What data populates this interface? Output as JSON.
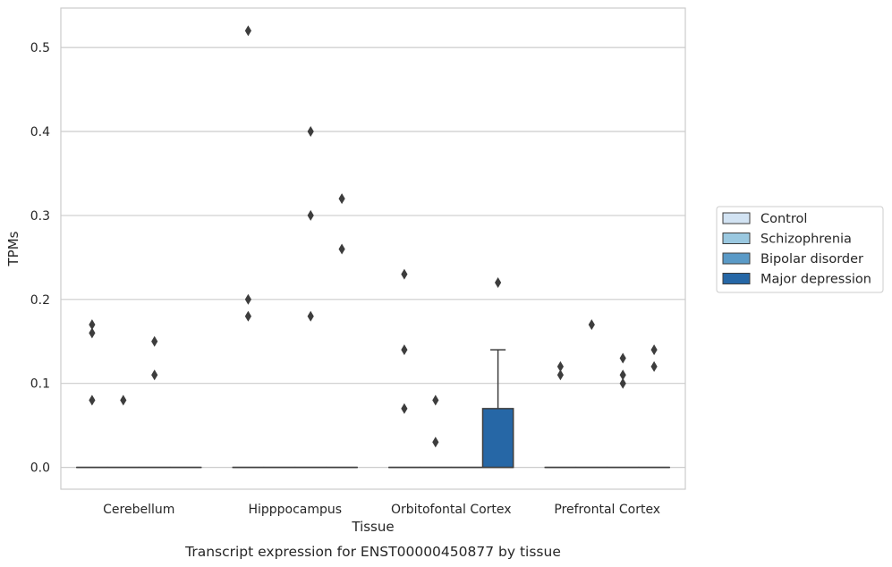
{
  "caption": "Transcript expression for ENST00000450877 by tissue",
  "chart_data": {
    "type": "box",
    "xlabel": "Tissue",
    "ylabel": "TPMs",
    "ylim": [
      -0.026,
      0.547
    ],
    "yticks": [
      0.0,
      0.1,
      0.2,
      0.3,
      0.4,
      0.5
    ],
    "ytick_labels": [
      "0.0",
      "0.1",
      "0.2",
      "0.3",
      "0.4",
      "0.5"
    ],
    "grid": true,
    "legend_position": "right",
    "categories": [
      "Cerebellum",
      "Hipppocampus",
      "Orbitofontal Cortex",
      "Prefrontal Cortex"
    ],
    "series": [
      {
        "name": "Control",
        "color": "#d2e3f3",
        "boxes": [
          {
            "q1": 0,
            "median": 0,
            "q3": 0,
            "whislo": 0,
            "whishi": 0,
            "fliers": [
              0.17,
              0.16,
              0.08
            ]
          },
          {
            "q1": 0,
            "median": 0,
            "q3": 0,
            "whislo": 0,
            "whishi": 0,
            "fliers": [
              0.52,
              0.2,
              0.18
            ]
          },
          {
            "q1": 0,
            "median": 0,
            "q3": 0,
            "whislo": 0,
            "whishi": 0,
            "fliers": [
              0.23,
              0.14,
              0.07
            ]
          },
          {
            "q1": 0,
            "median": 0,
            "q3": 0,
            "whislo": 0,
            "whishi": 0,
            "fliers": [
              0.12,
              0.11
            ]
          }
        ]
      },
      {
        "name": "Schizophrenia",
        "color": "#9ac8e0",
        "boxes": [
          {
            "q1": 0,
            "median": 0,
            "q3": 0,
            "whislo": 0,
            "whishi": 0,
            "fliers": [
              0.08
            ]
          },
          {
            "q1": 0,
            "median": 0,
            "q3": 0,
            "whislo": 0,
            "whishi": 0,
            "fliers": []
          },
          {
            "q1": 0,
            "median": 0,
            "q3": 0,
            "whislo": 0,
            "whishi": 0,
            "fliers": [
              0.08,
              0.03
            ]
          },
          {
            "q1": 0,
            "median": 0,
            "q3": 0,
            "whislo": 0,
            "whishi": 0,
            "fliers": [
              0.17
            ]
          }
        ]
      },
      {
        "name": "Bipolar disorder",
        "color": "#5a9ac7",
        "boxes": [
          {
            "q1": 0,
            "median": 0,
            "q3": 0,
            "whislo": 0,
            "whishi": 0,
            "fliers": [
              0.15,
              0.11
            ]
          },
          {
            "q1": 0,
            "median": 0,
            "q3": 0,
            "whislo": 0,
            "whishi": 0,
            "fliers": [
              0.4,
              0.3,
              0.18
            ]
          },
          {
            "q1": 0,
            "median": 0,
            "q3": 0,
            "whislo": 0,
            "whishi": 0,
            "fliers": []
          },
          {
            "q1": 0,
            "median": 0,
            "q3": 0,
            "whislo": 0,
            "whishi": 0,
            "fliers": [
              0.13,
              0.11,
              0.1
            ]
          }
        ]
      },
      {
        "name": "Major depression",
        "color": "#2667a6",
        "boxes": [
          {
            "q1": 0,
            "median": 0,
            "q3": 0,
            "whislo": 0,
            "whishi": 0,
            "fliers": []
          },
          {
            "q1": 0,
            "median": 0,
            "q3": 0,
            "whislo": 0,
            "whishi": 0,
            "fliers": [
              0.32,
              0.26
            ]
          },
          {
            "q1": 0,
            "median": 0,
            "q3": 0.07,
            "whislo": 0,
            "whishi": 0.14,
            "fliers": [
              0.22
            ]
          },
          {
            "q1": 0,
            "median": 0,
            "q3": 0,
            "whislo": 0,
            "whishi": 0,
            "fliers": [
              0.14,
              0.12
            ]
          }
        ]
      }
    ]
  }
}
